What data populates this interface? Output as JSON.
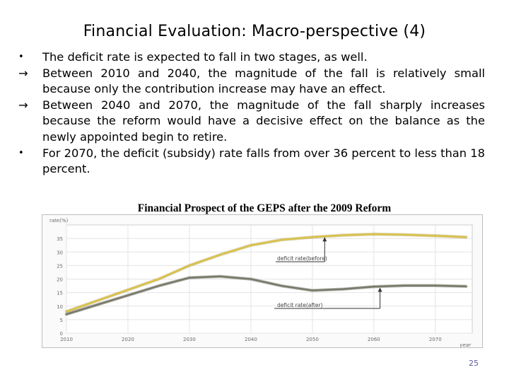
{
  "slide": {
    "title": "Financial Evaluation: Macro-perspective (4)",
    "paragraphs": [
      {
        "marker": "•",
        "text": "The deficit rate is expected to fall in two stages, as well."
      },
      {
        "marker": "→",
        "text": "Between 2010 and 2040, the magnitude of the fall is relatively small because only the contribution increase may have an effect."
      },
      {
        "marker": "→",
        "text": "Between 2040 and 2070, the magnitude of the fall sharply increases because the reform would have a decisive effect on the balance as the newly appointed begin to retire."
      },
      {
        "marker": "•",
        "text": "For 2070, the deficit (subsidy) rate falls from over 36 percent to less than 18 percent."
      }
    ],
    "chart_caption": "Financial Prospect of the GEPS after the 2009 Reform",
    "page_number": "25"
  },
  "chart_data": {
    "type": "line",
    "ylabel": "rate(%)",
    "xlabel": "year",
    "x": [
      2010,
      2015,
      2020,
      2025,
      2030,
      2035,
      2040,
      2045,
      2050,
      2055,
      2060,
      2065,
      2070,
      2075
    ],
    "xticks": [
      2010,
      2020,
      2030,
      2040,
      2050,
      2060,
      2070
    ],
    "yticks": [
      0,
      5,
      10,
      15,
      20,
      25,
      30,
      35
    ],
    "xlim": [
      2010,
      2076
    ],
    "ylim": [
      0,
      40
    ],
    "grid": true,
    "series": [
      {
        "name": "deficit rate(before)",
        "color": "#d9c24a",
        "values": [
          8,
          12,
          16,
          20,
          25,
          29,
          32.5,
          34.5,
          35.5,
          36.2,
          36.6,
          36.4,
          36.0,
          35.5
        ]
      },
      {
        "name": "deficit rate(after)",
        "color": "#7a7a6a",
        "values": [
          7,
          10.5,
          14,
          17.5,
          20.5,
          21,
          20,
          17.5,
          15.8,
          16.3,
          17.2,
          17.6,
          17.6,
          17.3
        ]
      }
    ]
  }
}
